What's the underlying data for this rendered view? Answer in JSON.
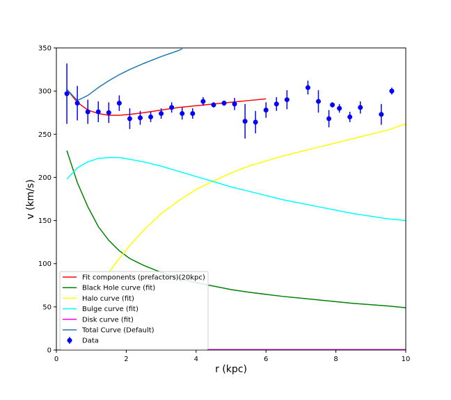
{
  "chart_data": {
    "type": "line",
    "title": "",
    "xlabel": "r (kpc)",
    "ylabel": "v (km/s)",
    "xlim": [
      0,
      10
    ],
    "ylim": [
      0,
      350
    ],
    "x_ticks": [
      0,
      2,
      4,
      6,
      8,
      10
    ],
    "y_ticks": [
      0,
      50,
      100,
      150,
      200,
      250,
      300,
      350
    ],
    "grid": false,
    "legend_position": "lower-left",
    "series": [
      {
        "name": "Fit components (prefactors)(20kpc)",
        "color": "#ff0000",
        "x": [
          0.3,
          0.6,
          0.9,
          1.2,
          1.5,
          1.8,
          2.1,
          2.5,
          3.0,
          3.5,
          4.0,
          4.5,
          5.0,
          5.5,
          6.0
        ],
        "y": [
          302,
          287,
          278,
          274,
          272,
          272,
          273,
          275,
          278,
          281,
          283,
          285,
          287,
          289,
          291
        ]
      },
      {
        "name": "Black Hole curve (fit)",
        "color": "#008000",
        "x": [
          0.3,
          0.6,
          0.9,
          1.2,
          1.5,
          1.8,
          2.1,
          2.5,
          3.0,
          3.5,
          4.0,
          4.5,
          5.0,
          5.5,
          6.0,
          6.5,
          7.0,
          7.5,
          8.0,
          8.5,
          9.0,
          9.5,
          10.0
        ],
        "y": [
          231,
          194,
          166,
          143,
          127,
          115,
          106,
          98,
          90,
          83,
          78,
          74,
          70,
          67,
          64.5,
          62,
          60,
          58,
          56,
          54,
          52.5,
          51,
          49
        ]
      },
      {
        "name": "Halo curve (fit)",
        "color": "#ffff00",
        "x": [
          1.5,
          1.8,
          2.1,
          2.5,
          3.0,
          3.5,
          4.0,
          4.5,
          5.0,
          5.5,
          6.0,
          6.5,
          7.0,
          7.5,
          8.0,
          8.5,
          9.0,
          9.5,
          10.0
        ],
        "y": [
          90,
          106,
          121,
          139,
          158,
          173,
          186,
          196,
          205,
          213,
          219,
          225,
          230,
          235,
          240,
          245,
          250,
          255,
          262
        ]
      },
      {
        "name": "Bulge curve (fit)",
        "color": "#00ffff",
        "x": [
          0.3,
          0.6,
          0.9,
          1.2,
          1.5,
          1.8,
          2.1,
          2.5,
          3.0,
          3.5,
          4.0,
          4.5,
          5.0,
          5.5,
          6.0,
          6.5,
          7.0,
          7.5,
          8.0,
          8.5,
          9.0,
          9.5,
          10.0
        ],
        "y": [
          198,
          211,
          218,
          222,
          223,
          223,
          221,
          218,
          213,
          207,
          201,
          195,
          189,
          184,
          179,
          174,
          170,
          166,
          162,
          158,
          155,
          152,
          150
        ]
      },
      {
        "name": "Disk curve (fit)",
        "color": "#ff00ff",
        "x": [
          0.3,
          10.0
        ],
        "y": [
          0.5,
          0.5
        ]
      },
      {
        "name": "Total Curve (Default)",
        "color": "#1f77b4",
        "x": [
          0.3,
          0.6,
          0.9,
          1.2,
          1.5,
          1.8,
          2.1,
          2.5,
          3.0,
          3.5,
          3.6
        ],
        "y": [
          302,
          289,
          295,
          304,
          312,
          319,
          325,
          332,
          340,
          347,
          349
        ]
      }
    ],
    "data_points": {
      "name": "Data",
      "color": "#0000ff",
      "x": [
        0.3,
        0.6,
        0.9,
        1.2,
        1.5,
        1.8,
        2.1,
        2.4,
        2.7,
        3.0,
        3.3,
        3.6,
        3.9,
        4.2,
        4.5,
        4.8,
        5.1,
        5.4,
        5.7,
        6.0,
        6.3,
        6.6,
        7.2,
        7.5,
        7.8,
        7.9,
        8.1,
        8.4,
        8.7,
        9.3,
        9.6
      ],
      "y": [
        297,
        286,
        276,
        276,
        275,
        286,
        268,
        269,
        270,
        274,
        281,
        274,
        274,
        288,
        284,
        286,
        285,
        265,
        264,
        278,
        285,
        290,
        304,
        288,
        268,
        284,
        280,
        270,
        281,
        273,
        300
      ],
      "err": [
        35,
        20,
        14,
        12,
        12,
        9,
        12,
        8,
        6,
        6,
        6,
        7,
        6,
        5,
        3,
        3,
        7,
        20,
        13,
        9,
        8,
        11,
        8,
        13,
        10,
        3,
        5,
        6,
        7,
        12,
        4
      ]
    }
  }
}
